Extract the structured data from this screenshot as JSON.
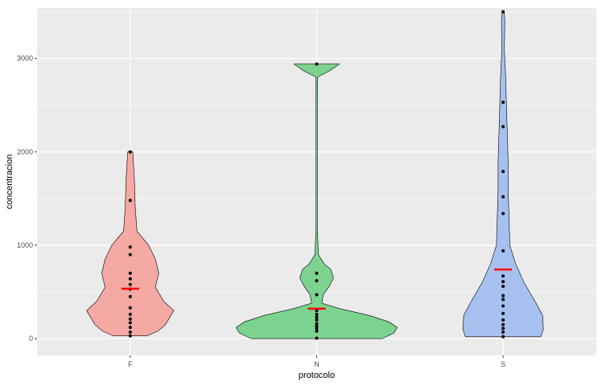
{
  "chart_data": {
    "type": "violin",
    "xlabel": "protocolo",
    "ylabel": "concentracion",
    "categories": [
      "F",
      "N",
      "S"
    ],
    "ylim": [
      -180,
      3540
    ],
    "yticks": [
      0,
      1000,
      2000,
      3000
    ],
    "grid": true,
    "legend": "none",
    "mean_marker_color": "#ff0000",
    "point_color": "#000000",
    "panel_background": "#ebebeb",
    "series": [
      {
        "category": "F",
        "fill": "#f4a9a3",
        "mean": 535,
        "points": [
          30,
          70,
          120,
          170,
          210,
          260,
          330,
          450,
          530,
          580,
          640,
          700,
          900,
          980,
          1480,
          2000
        ],
        "density": [
          [
            30,
            0.2
          ],
          [
            80,
            0.33
          ],
          [
            150,
            0.42
          ],
          [
            300,
            0.52
          ],
          [
            400,
            0.4
          ],
          [
            550,
            0.3
          ],
          [
            700,
            0.34
          ],
          [
            850,
            0.3
          ],
          [
            1000,
            0.22
          ],
          [
            1150,
            0.08
          ],
          [
            1400,
            0.06
          ],
          [
            1700,
            0.05
          ],
          [
            2000,
            0.03
          ]
        ]
      },
      {
        "category": "N",
        "fill": "#7bd38f",
        "mean": 320,
        "points": [
          5,
          80,
          110,
          130,
          160,
          200,
          230,
          260,
          300,
          470,
          620,
          700,
          2940
        ],
        "density": [
          [
            0,
            0.78
          ],
          [
            60,
            0.92
          ],
          [
            120,
            0.96
          ],
          [
            180,
            0.86
          ],
          [
            250,
            0.62
          ],
          [
            320,
            0.28
          ],
          [
            380,
            0.06
          ],
          [
            470,
            0.08
          ],
          [
            560,
            0.15
          ],
          [
            650,
            0.2
          ],
          [
            740,
            0.17
          ],
          [
            800,
            0.09
          ],
          [
            900,
            0.02
          ],
          [
            1200,
            0.008
          ],
          [
            2000,
            0.008
          ],
          [
            2800,
            0.01
          ],
          [
            2870,
            0.16
          ],
          [
            2940,
            0.27
          ]
        ]
      },
      {
        "category": "S",
        "fill": "#a6c0f0",
        "mean": 740,
        "points": [
          20,
          70,
          110,
          150,
          200,
          270,
          350,
          420,
          460,
          560,
          610,
          670,
          940,
          1340,
          1520,
          1790,
          2270,
          2530,
          3500
        ],
        "density": [
          [
            20,
            0.45
          ],
          [
            100,
            0.48
          ],
          [
            250,
            0.47
          ],
          [
            400,
            0.38
          ],
          [
            600,
            0.25
          ],
          [
            800,
            0.15
          ],
          [
            1000,
            0.08
          ],
          [
            1300,
            0.07
          ],
          [
            1600,
            0.06
          ],
          [
            1900,
            0.06
          ],
          [
            2200,
            0.05
          ],
          [
            2500,
            0.04
          ],
          [
            2800,
            0.03
          ],
          [
            3100,
            0.015
          ],
          [
            3400,
            0.02
          ],
          [
            3500,
            0.012
          ]
        ]
      }
    ]
  }
}
